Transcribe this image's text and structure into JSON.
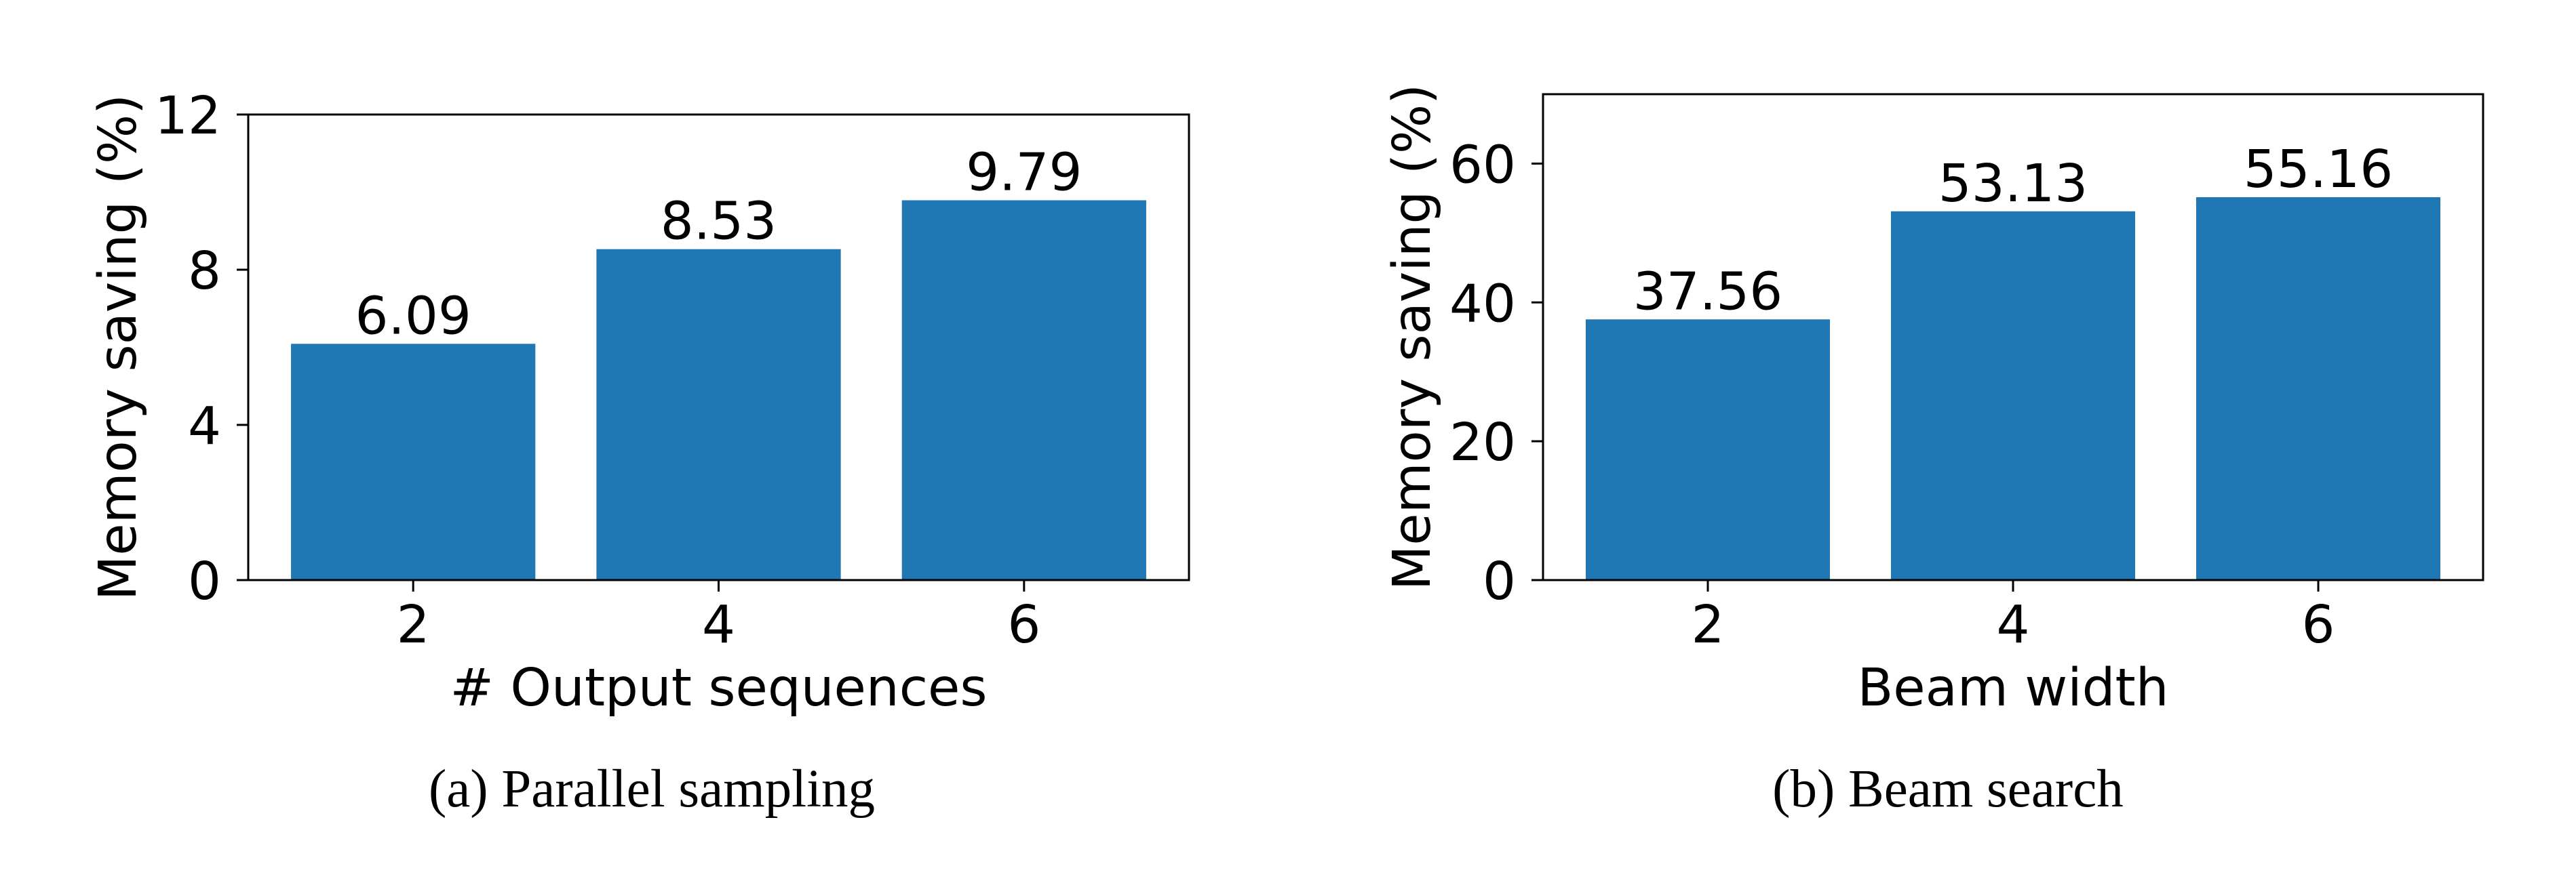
{
  "figure": {
    "background": "#ffffff",
    "bar_color": "#1f77b4",
    "axis_color": "#000000"
  },
  "chart_data": [
    {
      "id": "a",
      "type": "bar",
      "title": "",
      "caption": "(a) Parallel sampling",
      "categories": [
        "2",
        "4",
        "6"
      ],
      "values": [
        6.09,
        8.53,
        9.79
      ],
      "value_labels": [
        "6.09",
        "8.53",
        "9.79"
      ],
      "xlabel": "# Output sequences",
      "ylabel": "Memory saving (%)",
      "ylim": [
        0,
        12
      ],
      "yticks": [
        0,
        4,
        8,
        12
      ],
      "ytick_labels": [
        "0",
        "4",
        "8",
        "12"
      ],
      "grid": false,
      "legend": null,
      "color": "#1f77b4"
    },
    {
      "id": "b",
      "type": "bar",
      "title": "",
      "caption": "(b) Beam search",
      "categories": [
        "2",
        "4",
        "6"
      ],
      "values": [
        37.56,
        53.13,
        55.16
      ],
      "value_labels": [
        "37.56",
        "53.13",
        "55.16"
      ],
      "xlabel": "Beam width",
      "ylabel": "Memory saving (%)",
      "ylim": [
        0,
        70
      ],
      "yticks": [
        0,
        20,
        40,
        60
      ],
      "ytick_labels": [
        "0",
        "20",
        "40",
        "60"
      ],
      "grid": false,
      "legend": null,
      "color": "#1f77b4"
    }
  ]
}
